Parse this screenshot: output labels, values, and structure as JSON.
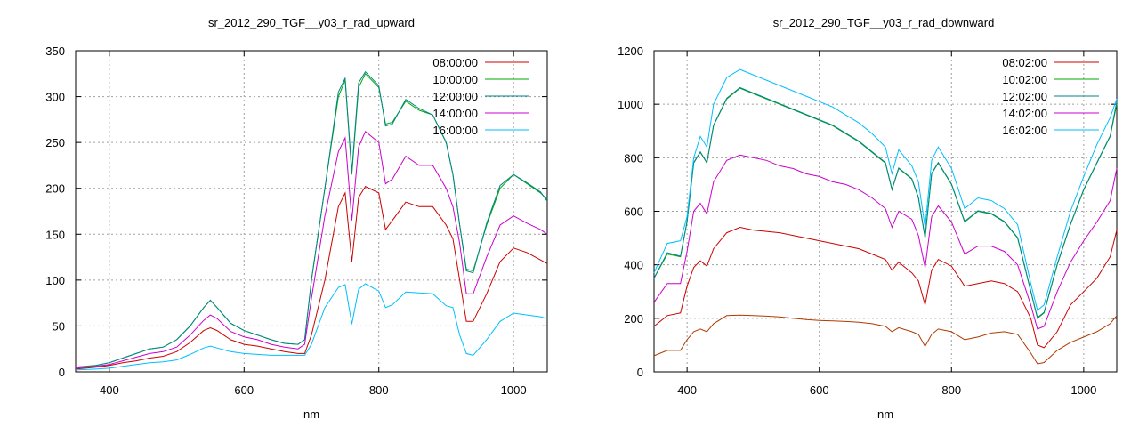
{
  "chart_data": [
    {
      "type": "line",
      "title": "sr_2012_290_TGF__y03_r_rad_upward",
      "xlabel": "nm",
      "ylabel": "",
      "xlim": [
        350,
        1050
      ],
      "ylim": [
        0,
        350
      ],
      "xticks": [
        400,
        600,
        800,
        1000
      ],
      "yticks": [
        0,
        50,
        100,
        150,
        200,
        250,
        300,
        350
      ],
      "grid": true,
      "legend_position": "top-right",
      "x": [
        350,
        380,
        400,
        420,
        440,
        460,
        480,
        500,
        520,
        540,
        550,
        560,
        580,
        600,
        620,
        640,
        660,
        680,
        690,
        700,
        720,
        740,
        750,
        760,
        770,
        780,
        800,
        810,
        820,
        840,
        860,
        880,
        900,
        910,
        920,
        930,
        940,
        960,
        980,
        1000,
        1020,
        1040,
        1050
      ],
      "series": [
        {
          "name": "08:00:00",
          "color": "#cc0000",
          "values": [
            3,
            5,
            7,
            10,
            12,
            15,
            17,
            22,
            32,
            45,
            48,
            45,
            35,
            30,
            28,
            25,
            22,
            20,
            20,
            40,
            100,
            180,
            195,
            120,
            190,
            202,
            195,
            155,
            165,
            185,
            180,
            180,
            160,
            145,
            100,
            55,
            55,
            85,
            120,
            135,
            130,
            122,
            118
          ]
        },
        {
          "name": "10:00:00",
          "color": "#00aa00",
          "values": [
            5,
            7,
            10,
            15,
            20,
            25,
            27,
            35,
            50,
            70,
            78,
            70,
            53,
            45,
            40,
            35,
            31,
            30,
            35,
            100,
            200,
            300,
            318,
            215,
            310,
            325,
            310,
            270,
            272,
            295,
            285,
            280,
            250,
            215,
            160,
            112,
            110,
            160,
            200,
            215,
            205,
            195,
            188
          ]
        },
        {
          "name": "12:00:00",
          "color": "#00868b",
          "values": [
            5,
            7,
            10,
            15,
            20,
            25,
            27,
            35,
            50,
            70,
            78,
            70,
            53,
            45,
            40,
            35,
            31,
            30,
            35,
            100,
            200,
            305,
            320,
            218,
            315,
            327,
            312,
            268,
            270,
            297,
            287,
            280,
            250,
            215,
            160,
            110,
            108,
            162,
            203,
            215,
            206,
            196,
            186
          ]
        },
        {
          "name": "14:00:00",
          "color": "#cc00cc",
          "values": [
            4,
            6,
            8,
            12,
            16,
            20,
            22,
            27,
            40,
            56,
            62,
            58,
            44,
            38,
            35,
            30,
            27,
            25,
            30,
            80,
            170,
            240,
            255,
            165,
            245,
            262,
            250,
            205,
            210,
            235,
            225,
            225,
            200,
            180,
            140,
            85,
            85,
            125,
            160,
            170,
            162,
            155,
            150
          ]
        },
        {
          "name": "16:00:00",
          "color": "#00bfff",
          "values": [
            2,
            3,
            4,
            6,
            8,
            10,
            11,
            13,
            19,
            26,
            28,
            26,
            22,
            20,
            19,
            18,
            18,
            18,
            18,
            30,
            70,
            92,
            95,
            52,
            90,
            96,
            88,
            70,
            73,
            87,
            86,
            85,
            72,
            70,
            40,
            20,
            18,
            35,
            55,
            64,
            62,
            60,
            58
          ]
        }
      ]
    },
    {
      "type": "line",
      "title": "sr_2012_290_TGF__y03_r_rad_downward",
      "xlabel": "nm",
      "ylabel": "",
      "xlim": [
        350,
        1050
      ],
      "ylim": [
        0,
        1200
      ],
      "xticks": [
        400,
        600,
        800,
        1000
      ],
      "yticks": [
        0,
        200,
        400,
        600,
        800,
        1000,
        1200
      ],
      "grid": true,
      "legend_position": "top-right",
      "x": [
        350,
        370,
        390,
        400,
        410,
        420,
        430,
        440,
        460,
        480,
        500,
        520,
        540,
        560,
        580,
        600,
        620,
        640,
        660,
        680,
        700,
        710,
        720,
        740,
        750,
        760,
        770,
        780,
        800,
        820,
        840,
        860,
        880,
        900,
        920,
        930,
        940,
        960,
        980,
        1000,
        1020,
        1040,
        1050
      ],
      "series": [
        {
          "name": "08:02:00",
          "color": "#cc0000",
          "values": [
            170,
            210,
            220,
            320,
            390,
            415,
            395,
            460,
            520,
            540,
            530,
            525,
            520,
            510,
            500,
            490,
            480,
            470,
            460,
            440,
            420,
            380,
            410,
            370,
            340,
            250,
            380,
            420,
            395,
            320,
            330,
            340,
            330,
            300,
            200,
            100,
            90,
            150,
            250,
            300,
            350,
            430,
            530
          ]
        },
        {
          "name": "10:02:00",
          "color": "#00aa00",
          "values": [
            350,
            440,
            430,
            560,
            780,
            820,
            780,
            920,
            1020,
            1060,
            1040,
            1020,
            1000,
            980,
            960,
            940,
            920,
            890,
            860,
            820,
            780,
            680,
            760,
            720,
            650,
            500,
            740,
            780,
            700,
            560,
            600,
            590,
            560,
            500,
            300,
            200,
            220,
            400,
            550,
            680,
            780,
            880,
            1000
          ]
        },
        {
          "name": "12:02:00",
          "color": "#00868b",
          "values": [
            350,
            445,
            432,
            562,
            782,
            822,
            782,
            922,
            1022,
            1062,
            1042,
            1022,
            1002,
            982,
            962,
            942,
            922,
            892,
            862,
            822,
            782,
            682,
            762,
            722,
            652,
            502,
            742,
            782,
            702,
            562,
            602,
            592,
            562,
            502,
            302,
            202,
            222,
            402,
            552,
            682,
            782,
            882,
            1010
          ]
        },
        {
          "name": "14:02:00",
          "color": "#cc00cc",
          "values": [
            260,
            330,
            330,
            450,
            600,
            630,
            590,
            710,
            790,
            810,
            800,
            790,
            770,
            760,
            740,
            730,
            710,
            700,
            680,
            650,
            610,
            540,
            600,
            570,
            510,
            390,
            580,
            620,
            560,
            440,
            470,
            470,
            450,
            400,
            250,
            160,
            170,
            300,
            410,
            490,
            560,
            640,
            760
          ]
        },
        {
          "name": "16:02:00",
          "color": "#00bfff",
          "values": [
            370,
            480,
            490,
            580,
            800,
            880,
            840,
            1000,
            1100,
            1130,
            1110,
            1090,
            1070,
            1050,
            1030,
            1010,
            990,
            960,
            930,
            890,
            840,
            740,
            830,
            770,
            710,
            540,
            790,
            840,
            760,
            610,
            650,
            640,
            610,
            550,
            330,
            230,
            250,
            430,
            600,
            730,
            850,
            950,
            1020
          ]
        },
        {
          "name": "",
          "color": "#b03a00",
          "values": [
            60,
            80,
            80,
            120,
            150,
            160,
            150,
            180,
            210,
            212,
            210,
            208,
            205,
            200,
            195,
            192,
            190,
            188,
            185,
            180,
            170,
            150,
            165,
            150,
            140,
            95,
            140,
            160,
            150,
            120,
            130,
            145,
            150,
            140,
            70,
            30,
            35,
            80,
            110,
            130,
            150,
            180,
            210
          ]
        }
      ]
    }
  ]
}
